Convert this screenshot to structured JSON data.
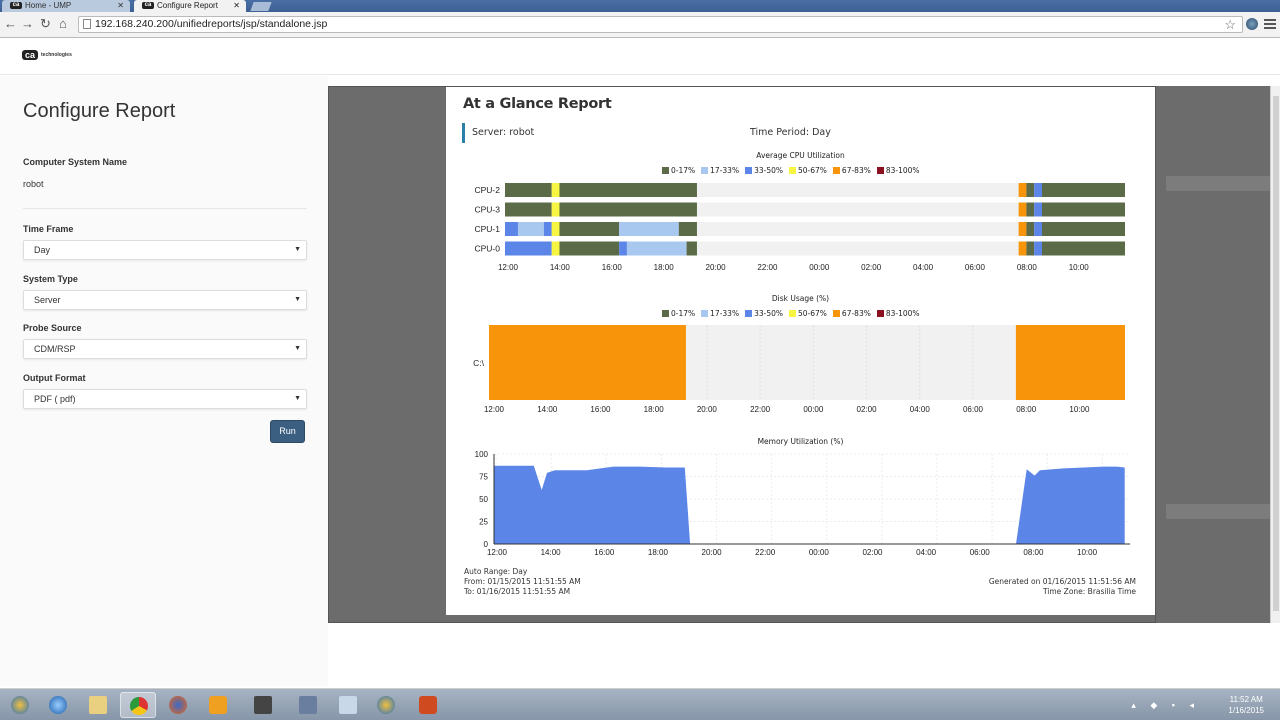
{
  "browser": {
    "tabs": [
      {
        "label": "Home - UMP",
        "active": false
      },
      {
        "label": "Configure Report",
        "active": true
      }
    ],
    "url": "192.168.240.200/unifiedreports/jsp/standalone.jsp"
  },
  "header": {
    "logo_mark": "ca",
    "logo_text": "technologies"
  },
  "config": {
    "title": "Configure Report",
    "computer_system_name_label": "Computer System Name",
    "computer_system_name_value": "robot",
    "time_frame_label": "Time Frame",
    "time_frame_value": "Day",
    "system_type_label": "System Type",
    "system_type_value": "Server",
    "probe_source_label": "Probe Source",
    "probe_source_value": "CDM/RSP",
    "output_format_label": "Output Format",
    "output_format_value": "PDF ( pdf)",
    "run_label": "Run"
  },
  "report": {
    "title": "At a Glance Report",
    "server": "Server: robot",
    "time_period": "Time Period: Day",
    "footer_left": [
      "Auto Range: Day",
      "From: 01/15/2015 11:51:55 AM",
      "To: 01/16/2015 11:51:55 AM"
    ],
    "footer_right": [
      "Generated on 01/16/2015 11:51:56 AM",
      "Time Zone: Brasilia Time"
    ]
  },
  "legend": [
    {
      "label": "0-17%",
      "color": "#5b6b47"
    },
    {
      "label": "17-33%",
      "color": "#a9c8f0"
    },
    {
      "label": "33-50%",
      "color": "#5b86e8"
    },
    {
      "label": "50-67%",
      "color": "#f5f542"
    },
    {
      "label": "67-83%",
      "color": "#f7940a"
    },
    {
      "label": "83-100%",
      "color": "#8a1022"
    }
  ],
  "x_ticks": [
    "12:00",
    "14:00",
    "16:00",
    "18:00",
    "20:00",
    "22:00",
    "00:00",
    "02:00",
    "04:00",
    "06:00",
    "08:00",
    "10:00"
  ],
  "chart_data": [
    {
      "type": "heatmap",
      "title": "Average CPU Utilization",
      "rows": [
        "CPU-2",
        "CPU-3",
        "CPU-1",
        "CPU-0"
      ],
      "x_range": [
        "11:52 (day 1)",
        "11:52 (day 2)"
      ],
      "segments_hours_from_12": {
        "CPU-2": [
          [
            0,
            1.8,
            "0-17%"
          ],
          [
            1.8,
            2.1,
            "50-67%"
          ],
          [
            2.1,
            7.4,
            "0-17%"
          ],
          [
            19.8,
            20.1,
            "67-83%"
          ],
          [
            20.1,
            20.4,
            "0-17%"
          ],
          [
            20.4,
            20.7,
            "33-50%"
          ],
          [
            20.7,
            23.9,
            "0-17%"
          ]
        ],
        "CPU-3": [
          [
            0,
            1.8,
            "0-17%"
          ],
          [
            1.8,
            2.1,
            "50-67%"
          ],
          [
            2.1,
            7.4,
            "0-17%"
          ],
          [
            19.8,
            20.1,
            "67-83%"
          ],
          [
            20.1,
            20.4,
            "0-17%"
          ],
          [
            20.4,
            20.7,
            "33-50%"
          ],
          [
            20.7,
            23.9,
            "0-17%"
          ]
        ],
        "CPU-1": [
          [
            0,
            0.5,
            "33-50%"
          ],
          [
            0.5,
            1.5,
            "17-33%"
          ],
          [
            1.5,
            1.8,
            "33-50%"
          ],
          [
            1.8,
            2.1,
            "50-67%"
          ],
          [
            2.1,
            4.4,
            "0-17%"
          ],
          [
            4.4,
            6.7,
            "17-33%"
          ],
          [
            6.7,
            7.4,
            "0-17%"
          ],
          [
            19.8,
            20.1,
            "67-83%"
          ],
          [
            20.1,
            20.4,
            "0-17%"
          ],
          [
            20.4,
            20.7,
            "33-50%"
          ],
          [
            20.7,
            23.9,
            "0-17%"
          ]
        ],
        "CPU-0": [
          [
            0,
            1.8,
            "33-50%"
          ],
          [
            1.8,
            2.1,
            "50-67%"
          ],
          [
            2.1,
            4.4,
            "0-17%"
          ],
          [
            4.4,
            4.7,
            "33-50%"
          ],
          [
            4.7,
            7.0,
            "17-33%"
          ],
          [
            7.0,
            7.4,
            "0-17%"
          ],
          [
            19.8,
            20.1,
            "67-83%"
          ],
          [
            20.1,
            20.4,
            "0-17%"
          ],
          [
            20.4,
            20.7,
            "33-50%"
          ],
          [
            20.7,
            23.9,
            "0-17%"
          ]
        ]
      }
    },
    {
      "type": "heatmap",
      "title": "Disk Usage (%)",
      "rows": [
        "C:\\"
      ],
      "segments_hours_from_12": {
        "C:\\": [
          [
            0,
            7.4,
            "67-83%"
          ],
          [
            19.8,
            23.9,
            "67-83%"
          ]
        ]
      }
    },
    {
      "type": "area",
      "title": "Memory Utilization (%)",
      "ylim": [
        0,
        100
      ],
      "y_ticks": [
        0,
        25,
        50,
        75,
        100
      ],
      "x_hours_from_12": [
        0,
        1.5,
        1.8,
        2.0,
        2.3,
        3.5,
        4.5,
        5.5,
        6.5,
        7.2,
        7.4,
        19.7,
        20.1,
        20.4,
        20.6,
        21.5,
        23.0,
        23.5,
        23.8
      ],
      "values": [
        87,
        87,
        60,
        79,
        82,
        82,
        86,
        86,
        85,
        85,
        0,
        0,
        83,
        76,
        82,
        84,
        86,
        86,
        85
      ]
    }
  ]
}
